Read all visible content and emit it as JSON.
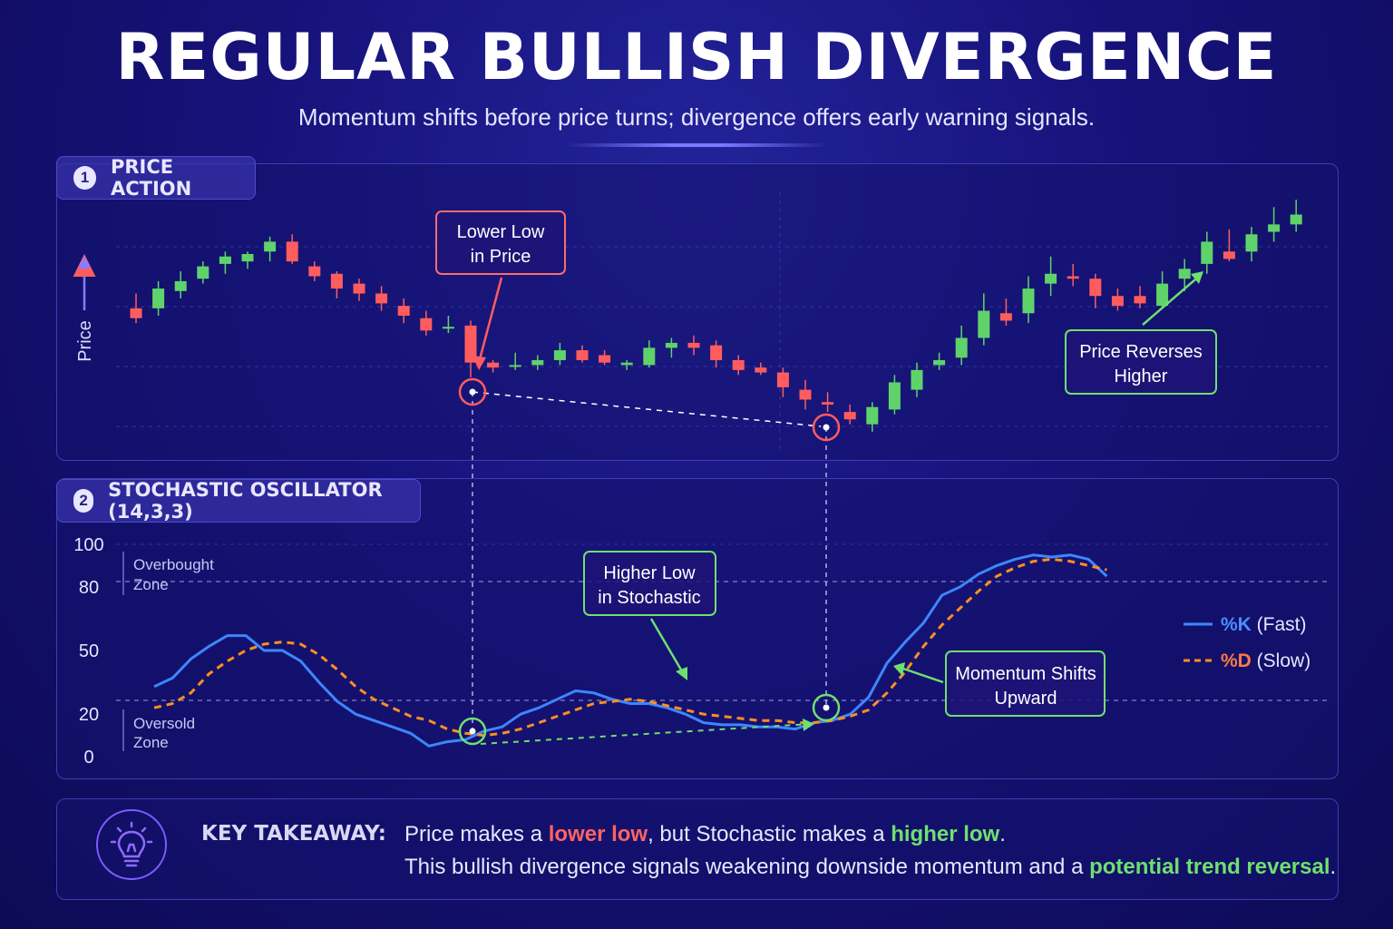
{
  "title": "REGULAR BULLISH DIVERGENCE",
  "subtitle": "Momentum shifts before price turns; divergence offers early warning signals.",
  "colors": {
    "bull": "#5fd36a",
    "bear": "#ff5d5d",
    "k_line": "#3d86ff",
    "d_line": "#ff8f1f",
    "accent": "#7a6bff",
    "annotation_red": "#ff5d5d",
    "annotation_green": "#6ee06e"
  },
  "price_panel": {
    "number": "1",
    "label": "PRICE ACTION",
    "axis_label": "Price",
    "annotation_lower_low": [
      "Lower Low",
      "in Price"
    ],
    "annotation_reverses": [
      "Price Reverses",
      "Higher"
    ]
  },
  "stoch_panel": {
    "number": "2",
    "label": "STOCHASTIC OSCILLATOR (14,3,3)",
    "overbought_zone": [
      "Overbought",
      "Zone"
    ],
    "oversold_zone": [
      "Oversold",
      "Zone"
    ],
    "annotation_higher_low": [
      "Higher Low",
      "in Stochastic"
    ],
    "annotation_momentum": [
      "Momentum Shifts",
      "Upward"
    ],
    "legend_k_symbol": "%K",
    "legend_k_rest": " (Fast)",
    "legend_d_symbol": "%D",
    "legend_d_rest": " (Slow)"
  },
  "takeaway": {
    "label": "KEY TAKEAWAY:",
    "line1_a": "Price makes a ",
    "line1_b": "lower low",
    "line1_c": ", but Stochastic makes a ",
    "line1_d": "higher low",
    "line1_e": ".",
    "line2_a": "This bullish divergence signals weakening downside momentum and a ",
    "line2_b": "potential trend reversal",
    "line2_c": ".",
    "icon": "lightbulb-icon"
  },
  "chart_data": [
    {
      "type": "candlestick",
      "title": "PRICE ACTION",
      "ylabel": "Price",
      "note": "OHLC values in relative price units (0 = lowest, 100 = highest shown)",
      "candles": [
        {
          "o": 53,
          "h": 59,
          "l": 47,
          "c": 49
        },
        {
          "o": 53,
          "h": 64,
          "l": 50,
          "c": 61
        },
        {
          "o": 60,
          "h": 68,
          "l": 57,
          "c": 64
        },
        {
          "o": 65,
          "h": 72,
          "l": 63,
          "c": 70
        },
        {
          "o": 71,
          "h": 76,
          "l": 67,
          "c": 74
        },
        {
          "o": 72,
          "h": 76,
          "l": 69,
          "c": 75
        },
        {
          "o": 76,
          "h": 82,
          "l": 72,
          "c": 80
        },
        {
          "o": 80,
          "h": 83,
          "l": 71,
          "c": 72
        },
        {
          "o": 70,
          "h": 72,
          "l": 64,
          "c": 66
        },
        {
          "o": 67,
          "h": 68,
          "l": 57,
          "c": 61
        },
        {
          "o": 63,
          "h": 65,
          "l": 56,
          "c": 59
        },
        {
          "o": 59,
          "h": 62,
          "l": 52,
          "c": 55
        },
        {
          "o": 54,
          "h": 57,
          "l": 47,
          "c": 50
        },
        {
          "o": 49,
          "h": 52,
          "l": 42,
          "c": 44
        },
        {
          "o": 45,
          "h": 50,
          "l": 43,
          "c": 45.5
        },
        {
          "o": 46,
          "h": 48,
          "l": 25,
          "c": 31
        },
        {
          "o": 31,
          "h": 32,
          "l": 27,
          "c": 29
        },
        {
          "o": 30,
          "h": 35,
          "l": 28,
          "c": 30
        },
        {
          "o": 30,
          "h": 34,
          "l": 28,
          "c": 32
        },
        {
          "o": 32,
          "h": 39,
          "l": 30,
          "c": 36
        },
        {
          "o": 36,
          "h": 38,
          "l": 31,
          "c": 32
        },
        {
          "o": 34,
          "h": 36,
          "l": 30,
          "c": 31
        },
        {
          "o": 30,
          "h": 32,
          "l": 28,
          "c": 31
        },
        {
          "o": 30,
          "h": 40,
          "l": 29,
          "c": 37
        },
        {
          "o": 37,
          "h": 41,
          "l": 33,
          "c": 39
        },
        {
          "o": 39,
          "h": 42,
          "l": 34,
          "c": 37
        },
        {
          "o": 38,
          "h": 40,
          "l": 29,
          "c": 32
        },
        {
          "o": 32,
          "h": 34,
          "l": 26,
          "c": 28
        },
        {
          "o": 29,
          "h": 31,
          "l": 26,
          "c": 27
        },
        {
          "o": 27,
          "h": 29,
          "l": 17,
          "c": 21
        },
        {
          "o": 20,
          "h": 24,
          "l": 12,
          "c": 16
        },
        {
          "o": 15,
          "h": 19,
          "l": 11,
          "c": 14
        },
        {
          "o": 11,
          "h": 14,
          "l": 6,
          "c": 8
        },
        {
          "o": 6,
          "h": 15,
          "l": 3,
          "c": 13
        },
        {
          "o": 12,
          "h": 26,
          "l": 10,
          "c": 23
        },
        {
          "o": 20,
          "h": 31,
          "l": 17,
          "c": 28
        },
        {
          "o": 30,
          "h": 35,
          "l": 28,
          "c": 32
        },
        {
          "o": 33,
          "h": 46,
          "l": 30,
          "c": 41
        },
        {
          "o": 41,
          "h": 59,
          "l": 38,
          "c": 52
        },
        {
          "o": 51,
          "h": 57,
          "l": 46,
          "c": 48
        },
        {
          "o": 51,
          "h": 66,
          "l": 47,
          "c": 61
        },
        {
          "o": 63,
          "h": 74,
          "l": 58,
          "c": 67
        },
        {
          "o": 66,
          "h": 71,
          "l": 62,
          "c": 65
        },
        {
          "o": 65,
          "h": 67,
          "l": 53,
          "c": 58
        },
        {
          "o": 58,
          "h": 61,
          "l": 52,
          "c": 54
        },
        {
          "o": 58,
          "h": 62,
          "l": 53,
          "c": 55
        },
        {
          "o": 54,
          "h": 68,
          "l": 53,
          "c": 63
        },
        {
          "o": 65,
          "h": 73,
          "l": 60,
          "c": 69
        },
        {
          "o": 71,
          "h": 84,
          "l": 67,
          "c": 80
        },
        {
          "o": 76,
          "h": 85,
          "l": 72,
          "c": 73
        },
        {
          "o": 76,
          "h": 86,
          "l": 72,
          "c": 83
        },
        {
          "o": 84,
          "h": 94,
          "l": 80,
          "c": 87
        },
        {
          "o": 87,
          "h": 97,
          "l": 84,
          "c": 91
        }
      ]
    },
    {
      "type": "line",
      "title": "STOCHASTIC OSCILLATOR (14,3,3)",
      "ylim": [
        0,
        100
      ],
      "yticks": [
        0,
        20,
        50,
        80,
        100
      ],
      "reference_lines": [
        20,
        80
      ],
      "series": [
        {
          "name": "%K (Fast)",
          "style": "solid",
          "values": [
            33,
            37,
            46,
            52,
            57,
            57,
            50,
            50,
            45,
            35,
            26,
            20,
            17,
            14,
            11,
            5,
            7,
            8,
            12,
            14,
            20,
            23,
            27,
            31,
            30,
            27,
            25,
            25,
            23,
            20,
            16,
            15,
            15,
            14,
            14,
            13,
            16,
            17,
            20,
            28,
            44,
            54,
            63,
            76,
            80,
            86,
            90,
            93,
            95,
            94,
            95,
            93,
            85
          ]
        },
        {
          "name": "%D (Slow)",
          "style": "dashed",
          "values": [
            23,
            25,
            30,
            39,
            45,
            50,
            53,
            54,
            53,
            48,
            41,
            33,
            27,
            23,
            19,
            17,
            13,
            11,
            10,
            11,
            13,
            16,
            19,
            22,
            25,
            26,
            27,
            26,
            24,
            22,
            20,
            19,
            18,
            17,
            17,
            16,
            16,
            17,
            19,
            22,
            30,
            40,
            52,
            62,
            70,
            78,
            85,
            89,
            92,
            93,
            92,
            90,
            88
          ]
        }
      ],
      "annotations": [
        {
          "text": "Higher Low in Stochastic"
        },
        {
          "text": "Momentum Shifts Upward"
        }
      ]
    }
  ]
}
